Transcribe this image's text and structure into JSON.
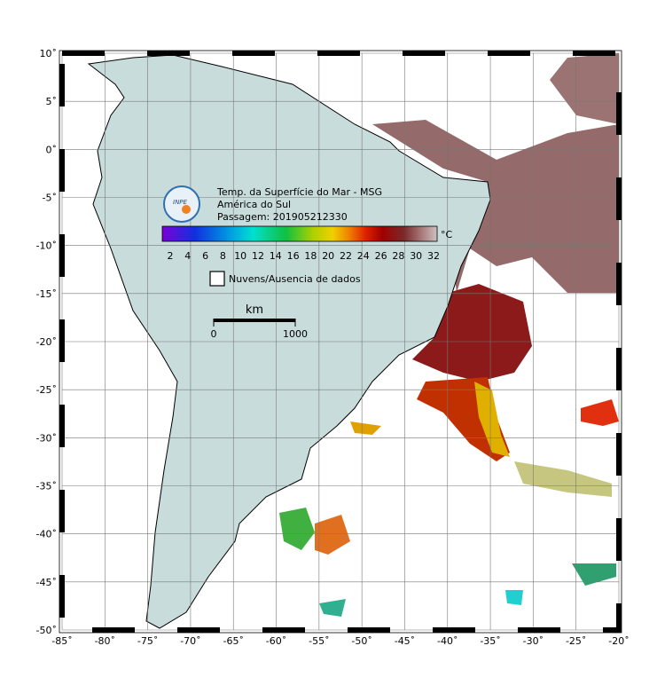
{
  "map": {
    "lon_ticks": [
      {
        "value": -85,
        "label": "-85˚"
      },
      {
        "value": -80,
        "label": "-80˚"
      },
      {
        "value": -75,
        "label": "-75˚"
      },
      {
        "value": -70,
        "label": "-70˚"
      },
      {
        "value": -65,
        "label": "-65˚"
      },
      {
        "value": -60,
        "label": "-60˚"
      },
      {
        "value": -55,
        "label": "-55˚"
      },
      {
        "value": -50,
        "label": "-50˚"
      },
      {
        "value": -45,
        "label": "-45˚"
      },
      {
        "value": -40,
        "label": "-40˚"
      },
      {
        "value": -35,
        "label": "-35˚"
      },
      {
        "value": -30,
        "label": "-30˚"
      },
      {
        "value": -25,
        "label": "-25˚"
      },
      {
        "value": -20,
        "label": "-20˚"
      }
    ],
    "lat_ticks": [
      {
        "value": 10,
        "label": "10˚"
      },
      {
        "value": 5,
        "label": "5˚"
      },
      {
        "value": 0,
        "label": "0˚"
      },
      {
        "value": -5,
        "label": "-5˚"
      },
      {
        "value": -10,
        "label": "-10˚"
      },
      {
        "value": -15,
        "label": "-15˚"
      },
      {
        "value": -20,
        "label": "-20˚"
      },
      {
        "value": -25,
        "label": "-25˚"
      },
      {
        "value": -30,
        "label": "-30˚"
      },
      {
        "value": -35,
        "label": "-35˚"
      },
      {
        "value": -40,
        "label": "-40˚"
      },
      {
        "value": -45,
        "label": "-45˚"
      },
      {
        "value": -50,
        "label": "-50˚"
      }
    ],
    "logo": "INPE",
    "title_lines": [
      "Temp. da Superfície do Mar - MSG",
      "América do Sul",
      "Passagem: 201905212330"
    ],
    "colorbar": {
      "ticks": [
        2,
        4,
        6,
        8,
        10,
        12,
        14,
        16,
        18,
        20,
        22,
        24,
        26,
        28,
        30,
        32
      ],
      "unit": "°C"
    },
    "cloud_legend": "Nuvens/Ausencia de dados",
    "scale_bar": {
      "unit": "km",
      "ticks": [
        0,
        1000
      ]
    }
  }
}
